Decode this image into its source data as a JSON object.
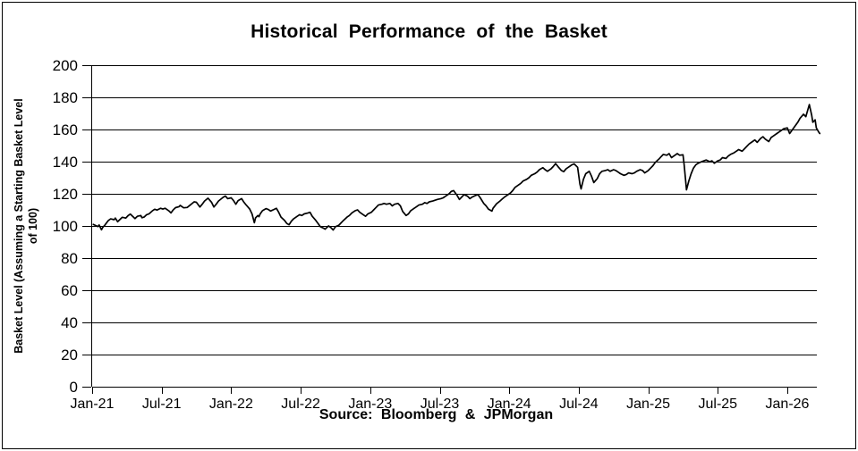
{
  "title": "Historical Performance of the Basket",
  "source_note": "Source: Bloomberg & JPMorgan",
  "y_axis": {
    "title_line1": "Basket Level (Assuming a Starting Basket Level",
    "title_line2": "of 100)",
    "ticks": [
      200,
      180,
      160,
      140,
      120,
      100,
      80,
      60,
      40,
      20,
      0
    ]
  },
  "x_axis": {
    "tick_labels": [
      "Jan-21",
      "Jul-21",
      "Jan-22",
      "Jul-22",
      "Jan-23",
      "Jul-23",
      "Jan-24",
      "Jul-24",
      "Jan-25",
      "Jul-25",
      "Jan-26"
    ],
    "tick_months": [
      0,
      6,
      12,
      18,
      24,
      30,
      36,
      42,
      48,
      54,
      60
    ]
  },
  "line_color": "#000000",
  "chart_data": {
    "type": "line",
    "title": "Historical Performance of the Basket",
    "xlabel": "",
    "ylabel": "Basket Level (Assuming a Starting Basket Level of 100)",
    "source_note": "Source: Bloomberg & JPMorgan",
    "ylim": [
      0,
      200
    ],
    "y_ticks": [
      0,
      20,
      40,
      60,
      80,
      100,
      120,
      140,
      160,
      180,
      200
    ],
    "x_tick_labels": [
      "Jan-21",
      "Jul-21",
      "Jan-22",
      "Jul-22",
      "Jan-23",
      "Jul-23",
      "Jan-24",
      "Jul-24",
      "Jan-25",
      "Jul-25",
      "Jan-26"
    ],
    "x_unit": "months since Jan-2021",
    "x_range_months": [
      0,
      62.8
    ],
    "grid": "horizontal",
    "legend": "none",
    "series": [
      {
        "name": "Basket Level",
        "points": [
          [
            0.1,
            101
          ],
          [
            0.3,
            100.3
          ],
          [
            0.5,
            99.6
          ],
          [
            0.6,
            100.6
          ],
          [
            0.8,
            97.6
          ],
          [
            0.9,
            99
          ],
          [
            1.1,
            100.5
          ],
          [
            1.2,
            101.5
          ],
          [
            1.4,
            103.4
          ],
          [
            1.6,
            104.4
          ],
          [
            1.9,
            103.9
          ],
          [
            2.0,
            104.9
          ],
          [
            2.2,
            102.6
          ],
          [
            2.4,
            104
          ],
          [
            2.6,
            105.4
          ],
          [
            2.9,
            104.9
          ],
          [
            3.1,
            106.4
          ],
          [
            3.3,
            107.4
          ],
          [
            3.5,
            106
          ],
          [
            3.7,
            104.6
          ],
          [
            3.9,
            106
          ],
          [
            4.2,
            106.5
          ],
          [
            4.3,
            105.1
          ],
          [
            4.5,
            105.6
          ],
          [
            4.7,
            107
          ],
          [
            4.9,
            107.5
          ],
          [
            5.2,
            109.4
          ],
          [
            5.4,
            110.4
          ],
          [
            5.6,
            109.9
          ],
          [
            5.9,
            111
          ],
          [
            6.1,
            110.5
          ],
          [
            6.3,
            111
          ],
          [
            6.6,
            109.5
          ],
          [
            6.8,
            108.1
          ],
          [
            7.0,
            110
          ],
          [
            7.2,
            111.4
          ],
          [
            7.5,
            112
          ],
          [
            7.6,
            112.8
          ],
          [
            7.9,
            111.3
          ],
          [
            8.2,
            111.5
          ],
          [
            8.5,
            113.2
          ],
          [
            8.8,
            115
          ],
          [
            9.0,
            114.7
          ],
          [
            9.3,
            111.8
          ],
          [
            9.5,
            113.5
          ],
          [
            9.7,
            115.5
          ],
          [
            10.0,
            117.3
          ],
          [
            10.3,
            114.8
          ],
          [
            10.5,
            111.8
          ],
          [
            10.7,
            113.5
          ],
          [
            10.9,
            115.5
          ],
          [
            11.3,
            117.8
          ],
          [
            11.5,
            118.6
          ],
          [
            11.7,
            117
          ],
          [
            12.0,
            117.5
          ],
          [
            12.2,
            115.8
          ],
          [
            12.4,
            113.5
          ],
          [
            12.6,
            115.8
          ],
          [
            12.9,
            117
          ],
          [
            13.1,
            114.8
          ],
          [
            13.3,
            113
          ],
          [
            13.6,
            110.5
          ],
          [
            13.8,
            107.5
          ],
          [
            14.0,
            102
          ],
          [
            14.1,
            105
          ],
          [
            14.3,
            106.5
          ],
          [
            14.4,
            105.8
          ],
          [
            14.5,
            107.5
          ],
          [
            14.7,
            109.5
          ],
          [
            15.0,
            110.8
          ],
          [
            15.2,
            110.3
          ],
          [
            15.4,
            109.3
          ],
          [
            15.7,
            110.3
          ],
          [
            15.9,
            111
          ],
          [
            16.1,
            108.5
          ],
          [
            16.3,
            105.5
          ],
          [
            16.6,
            103.5
          ],
          [
            16.8,
            101.5
          ],
          [
            17.0,
            100.8
          ],
          [
            17.2,
            103
          ],
          [
            17.4,
            104.5
          ],
          [
            17.7,
            106
          ],
          [
            17.9,
            107
          ],
          [
            18.1,
            106.5
          ],
          [
            18.3,
            107.5
          ],
          [
            18.6,
            108
          ],
          [
            18.8,
            108.5
          ],
          [
            19.0,
            106
          ],
          [
            19.3,
            103.5
          ],
          [
            19.5,
            101.5
          ],
          [
            19.7,
            99.5
          ],
          [
            20.0,
            98.5
          ],
          [
            20.1,
            98
          ],
          [
            20.4,
            100
          ],
          [
            20.6,
            99
          ],
          [
            20.8,
            97.5
          ],
          [
            21.0,
            99.5
          ],
          [
            21.3,
            100.5
          ],
          [
            21.5,
            102
          ],
          [
            21.7,
            103.5
          ],
          [
            22.0,
            105.5
          ],
          [
            22.2,
            106.5
          ],
          [
            22.4,
            108
          ],
          [
            22.7,
            109.5
          ],
          [
            22.9,
            110
          ],
          [
            23.1,
            108.5
          ],
          [
            23.4,
            107
          ],
          [
            23.6,
            106
          ],
          [
            23.8,
            107.5
          ],
          [
            24.1,
            108.5
          ],
          [
            24.3,
            110
          ],
          [
            24.5,
            111.5
          ],
          [
            24.7,
            113
          ],
          [
            25.0,
            113.5
          ],
          [
            25.2,
            114
          ],
          [
            25.4,
            113.5
          ],
          [
            25.7,
            114
          ],
          [
            25.9,
            112.5
          ],
          [
            26.1,
            113.5
          ],
          [
            26.4,
            114
          ],
          [
            26.6,
            112.5
          ],
          [
            26.8,
            109
          ],
          [
            27.1,
            106.5
          ],
          [
            27.3,
            107.5
          ],
          [
            27.5,
            109.5
          ],
          [
            27.8,
            111
          ],
          [
            28.0,
            112
          ],
          [
            28.2,
            113
          ],
          [
            28.5,
            113.5
          ],
          [
            28.7,
            114.5
          ],
          [
            28.9,
            114
          ],
          [
            29.1,
            115
          ],
          [
            29.4,
            115.5
          ],
          [
            29.6,
            116
          ],
          [
            29.8,
            116.5
          ],
          [
            30.1,
            117
          ],
          [
            30.3,
            117.5
          ],
          [
            30.5,
            118.5
          ],
          [
            30.8,
            120
          ],
          [
            31.0,
            121.5
          ],
          [
            31.2,
            122
          ],
          [
            31.5,
            119
          ],
          [
            31.7,
            116.5
          ],
          [
            31.9,
            118
          ],
          [
            32.1,
            119.5
          ],
          [
            32.4,
            118.5
          ],
          [
            32.6,
            117
          ],
          [
            32.8,
            118
          ],
          [
            33.1,
            119
          ],
          [
            33.3,
            119.5
          ],
          [
            33.5,
            117.5
          ],
          [
            33.8,
            114
          ],
          [
            34.0,
            112.5
          ],
          [
            34.2,
            110.5
          ],
          [
            34.5,
            109.2
          ],
          [
            34.6,
            111
          ],
          [
            34.9,
            113.8
          ],
          [
            35.2,
            115.5
          ],
          [
            35.4,
            116.8
          ],
          [
            35.6,
            118
          ],
          [
            35.9,
            119.5
          ],
          [
            36.1,
            120.5
          ],
          [
            36.3,
            122
          ],
          [
            36.5,
            124
          ],
          [
            36.8,
            125.5
          ],
          [
            37.0,
            126.5
          ],
          [
            37.2,
            128
          ],
          [
            37.5,
            129
          ],
          [
            37.7,
            130
          ],
          [
            37.9,
            131.5
          ],
          [
            38.2,
            132.5
          ],
          [
            38.4,
            133.5
          ],
          [
            38.6,
            135
          ],
          [
            38.9,
            136.3
          ],
          [
            39.1,
            135
          ],
          [
            39.3,
            134
          ],
          [
            39.6,
            135.5
          ],
          [
            39.8,
            137
          ],
          [
            40.0,
            138.8
          ],
          [
            40.2,
            137
          ],
          [
            40.5,
            134.5
          ],
          [
            40.7,
            133.8
          ],
          [
            40.9,
            135.5
          ],
          [
            41.2,
            137
          ],
          [
            41.4,
            138
          ],
          [
            41.6,
            138.6
          ],
          [
            41.9,
            136.5
          ],
          [
            42.1,
            126
          ],
          [
            42.2,
            123
          ],
          [
            42.4,
            129
          ],
          [
            42.6,
            132.5
          ],
          [
            42.9,
            134
          ],
          [
            43.1,
            131
          ],
          [
            43.3,
            127
          ],
          [
            43.6,
            129.5
          ],
          [
            43.8,
            132.5
          ],
          [
            44.0,
            134
          ],
          [
            44.3,
            134.5
          ],
          [
            44.5,
            135
          ],
          [
            44.7,
            134
          ],
          [
            45.0,
            135
          ],
          [
            45.2,
            134.5
          ],
          [
            45.4,
            133.5
          ],
          [
            45.6,
            132.5
          ],
          [
            45.9,
            131.5
          ],
          [
            46.1,
            132
          ],
          [
            46.3,
            133
          ],
          [
            46.6,
            132.5
          ],
          [
            46.8,
            133
          ],
          [
            47.0,
            134
          ],
          [
            47.3,
            135
          ],
          [
            47.5,
            134.5
          ],
          [
            47.7,
            133
          ],
          [
            48.0,
            134.5
          ],
          [
            48.2,
            136
          ],
          [
            48.4,
            137.5
          ],
          [
            48.6,
            139.5
          ],
          [
            48.9,
            141.5
          ],
          [
            49.1,
            143
          ],
          [
            49.3,
            144.5
          ],
          [
            49.6,
            144
          ],
          [
            49.8,
            145
          ],
          [
            50.0,
            142.5
          ],
          [
            50.3,
            144
          ],
          [
            50.5,
            145
          ],
          [
            50.7,
            144
          ],
          [
            51.0,
            144.3
          ],
          [
            51.1,
            138
          ],
          [
            51.3,
            122.5
          ],
          [
            51.5,
            128
          ],
          [
            51.7,
            132.5
          ],
          [
            51.9,
            136
          ],
          [
            52.1,
            138
          ],
          [
            52.3,
            139
          ],
          [
            52.6,
            140
          ],
          [
            52.8,
            140.5
          ],
          [
            53.0,
            141
          ],
          [
            53.3,
            140
          ],
          [
            53.5,
            140.5
          ],
          [
            53.7,
            139
          ],
          [
            54.0,
            140.5
          ],
          [
            54.2,
            141
          ],
          [
            54.4,
            142.5
          ],
          [
            54.7,
            142
          ],
          [
            54.9,
            143.5
          ],
          [
            55.1,
            144.5
          ],
          [
            55.4,
            145.5
          ],
          [
            55.6,
            146.5
          ],
          [
            55.8,
            147.5
          ],
          [
            56.1,
            146.5
          ],
          [
            56.3,
            148
          ],
          [
            56.5,
            149.5
          ],
          [
            56.7,
            151
          ],
          [
            57.0,
            152.5
          ],
          [
            57.2,
            153.5
          ],
          [
            57.4,
            152
          ],
          [
            57.7,
            154.5
          ],
          [
            57.9,
            155.5
          ],
          [
            58.1,
            154
          ],
          [
            58.4,
            152.5
          ],
          [
            58.6,
            155
          ],
          [
            58.8,
            156
          ],
          [
            59.1,
            157.5
          ],
          [
            59.3,
            158.5
          ],
          [
            59.5,
            159.5
          ],
          [
            59.7,
            160.5
          ],
          [
            60.0,
            161
          ],
          [
            60.2,
            157.5
          ],
          [
            60.5,
            160.5
          ],
          [
            60.7,
            162.5
          ],
          [
            60.9,
            164.5
          ],
          [
            61.1,
            167
          ],
          [
            61.4,
            169.5
          ],
          [
            61.6,
            168
          ],
          [
            61.8,
            173
          ],
          [
            61.9,
            175.5
          ],
          [
            62.1,
            169
          ],
          [
            62.2,
            164.5
          ],
          [
            62.4,
            166
          ],
          [
            62.5,
            161
          ],
          [
            62.7,
            158.5
          ],
          [
            62.8,
            157.5
          ]
        ]
      }
    ]
  }
}
